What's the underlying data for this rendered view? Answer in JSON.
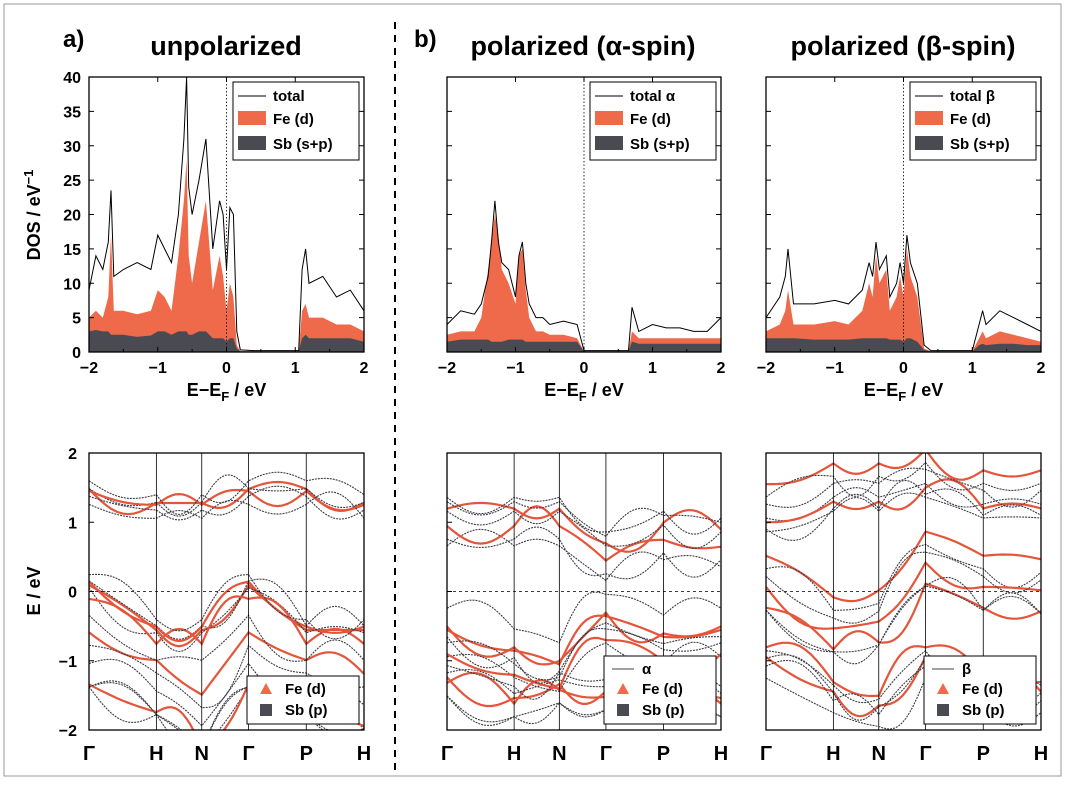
{
  "colors": {
    "fe": "#ee6a4a",
    "sb": "#4a4a52",
    "total": "#000000",
    "band_dark": "#3c3c46",
    "band_fe": "#e5553a"
  },
  "panel_labels": [
    "a)",
    "b)"
  ],
  "column_titles": [
    "unpolarized",
    "polarized (α-spin)",
    "polarized (β-spin)"
  ],
  "dos_axes": {
    "ylabel": "DOS / eV",
    "ylabel_sup": "−1",
    "xlabel_main": "E−E",
    "xlabel_sub": "F",
    "xlabel_unit": " /  eV",
    "xticks": [
      "−2",
      "−1",
      "0",
      "1",
      "2"
    ],
    "yticks": [
      "0",
      "5",
      "10",
      "15",
      "20",
      "25",
      "30",
      "35",
      "40"
    ]
  },
  "band_axes": {
    "ylabel": "E / eV",
    "yticks": [
      "−2",
      "−1",
      "0",
      "1",
      "2"
    ],
    "kpoints": [
      "Γ",
      "H",
      "N",
      "Γ",
      "P",
      "H"
    ]
  },
  "dos_legends": [
    [
      "total",
      "Fe (d)",
      "Sb (s+p)"
    ],
    [
      "total α",
      "Fe (d)",
      "Sb (s+p)"
    ],
    [
      "total β",
      "Fe (d)",
      "Sb (s+p)"
    ]
  ],
  "band_legends": [
    [
      "Fe (d)",
      "Sb (p)"
    ],
    [
      "α",
      "Fe (d)",
      "Sb (p)"
    ],
    [
      "β",
      "Fe (d)",
      "Sb (p)"
    ]
  ],
  "chart_data": [
    {
      "type": "area",
      "title": "unpolarized",
      "xlabel": "E−EF / eV",
      "ylabel": "DOS / eV−1",
      "xlim": [
        -2,
        2
      ],
      "ylim": [
        0,
        40
      ],
      "series": [
        {
          "name": "total",
          "x": [
            -2,
            -1.9,
            -1.8,
            -1.72,
            -1.68,
            -1.64,
            -1.5,
            -1.3,
            -1.1,
            -1.0,
            -0.9,
            -0.8,
            -0.7,
            -0.62,
            -0.58,
            -0.55,
            -0.5,
            -0.4,
            -0.3,
            -0.2,
            -0.1,
            -0.05,
            0,
            0.05,
            0.1,
            0.15,
            0.2,
            0.4,
            0.8,
            1.05,
            1.1,
            1.15,
            1.2,
            1.4,
            1.6,
            1.8,
            2.0
          ],
          "values": [
            9,
            14,
            12,
            16,
            23.5,
            11,
            12,
            13,
            12,
            17,
            15,
            13,
            20,
            31,
            40,
            24,
            20,
            25,
            31,
            15,
            22,
            20,
            12,
            21,
            20,
            3,
            0.3,
            0.2,
            0.2,
            0.2,
            12,
            15,
            10,
            11,
            8,
            9,
            6
          ]
        },
        {
          "name": "Fe (d)",
          "x": [
            -2,
            -1.9,
            -1.8,
            -1.72,
            -1.68,
            -1.64,
            -1.5,
            -1.3,
            -1.1,
            -1.0,
            -0.9,
            -0.8,
            -0.7,
            -0.62,
            -0.58,
            -0.55,
            -0.5,
            -0.4,
            -0.3,
            -0.2,
            -0.1,
            -0.05,
            0,
            0.05,
            0.1,
            0.15,
            0.2,
            0.4,
            0.8,
            1.05,
            1.1,
            1.15,
            1.2,
            1.4,
            1.6,
            1.8,
            2.0
          ],
          "values": [
            5,
            6,
            5,
            8,
            17,
            6,
            6,
            5.5,
            6,
            9,
            8,
            6,
            14,
            22,
            28,
            14,
            10,
            16,
            22,
            9,
            14,
            11,
            6,
            10,
            8,
            1,
            0.1,
            0.1,
            0.1,
            0.1,
            6,
            7,
            5,
            5,
            4,
            4,
            3
          ]
        },
        {
          "name": "Sb (s+p)",
          "x": [
            -2,
            -1.9,
            -1.8,
            -1.72,
            -1.68,
            -1.64,
            -1.5,
            -1.3,
            -1.1,
            -1.0,
            -0.9,
            -0.8,
            -0.7,
            -0.62,
            -0.58,
            -0.55,
            -0.5,
            -0.4,
            -0.3,
            -0.2,
            -0.1,
            -0.05,
            0,
            0.05,
            0.1,
            0.15,
            0.2,
            0.4,
            0.8,
            1.05,
            1.1,
            1.15,
            1.2,
            1.4,
            1.6,
            1.8,
            2.0
          ],
          "values": [
            3,
            3.2,
            3,
            3,
            2.5,
            2.5,
            2.5,
            2.2,
            2.4,
            3,
            3,
            2.5,
            3,
            3,
            3,
            2.5,
            2.5,
            3,
            3,
            2,
            2,
            2,
            1.5,
            2,
            2,
            0.5,
            0.1,
            0.1,
            0.1,
            0.1,
            2,
            2.5,
            2,
            2,
            2,
            2,
            1.5
          ]
        }
      ]
    },
    {
      "type": "area",
      "title": "polarized (α-spin)",
      "xlabel": "E−EF / eV",
      "xlim": [
        -2,
        2
      ],
      "ylim": [
        0,
        40
      ],
      "series": [
        {
          "name": "total α",
          "x": [
            -2,
            -1.8,
            -1.6,
            -1.5,
            -1.4,
            -1.35,
            -1.3,
            -1.25,
            -1.2,
            -1.1,
            -1.0,
            -0.95,
            -0.9,
            -0.85,
            -0.8,
            -0.7,
            -0.6,
            -0.5,
            -0.3,
            -0.1,
            0,
            0.3,
            0.6,
            0.65,
            0.7,
            0.8,
            1.0,
            1.2,
            1.4,
            1.6,
            1.8,
            2.0
          ],
          "values": [
            4,
            6,
            5.5,
            7,
            11,
            16,
            22,
            16,
            13,
            12,
            8,
            14,
            16,
            10,
            7,
            5,
            5,
            4,
            4.5,
            4,
            0.2,
            0.2,
            0.2,
            0.2,
            6.5,
            3,
            4,
            3.5,
            3.5,
            3,
            3,
            5
          ]
        },
        {
          "name": "Fe (d)",
          "x": [
            -2,
            -1.8,
            -1.6,
            -1.5,
            -1.4,
            -1.35,
            -1.3,
            -1.25,
            -1.2,
            -1.1,
            -1.0,
            -0.95,
            -0.9,
            -0.85,
            -0.8,
            -0.7,
            -0.6,
            -0.5,
            -0.3,
            -0.1,
            0,
            0.3,
            0.6,
            0.65,
            0.7,
            0.8,
            1.0,
            1.2,
            1.4,
            1.6,
            1.8,
            2.0
          ],
          "values": [
            2.5,
            3,
            3,
            5,
            12,
            16,
            20,
            17,
            12,
            10,
            7,
            14,
            15,
            9,
            5,
            3,
            3,
            2.5,
            2.5,
            2,
            0.1,
            0.1,
            0.1,
            0.1,
            3,
            2,
            2,
            2,
            2,
            2,
            2,
            2
          ]
        },
        {
          "name": "Sb (s+p)",
          "x": [
            -2,
            -1.8,
            -1.6,
            -1.5,
            -1.4,
            -1.35,
            -1.3,
            -1.25,
            -1.2,
            -1.1,
            -1.0,
            -0.95,
            -0.9,
            -0.85,
            -0.8,
            -0.7,
            -0.6,
            -0.5,
            -0.3,
            -0.1,
            0,
            0.3,
            0.6,
            0.65,
            0.7,
            0.8,
            1.0,
            1.2,
            1.4,
            1.6,
            1.8,
            2.0
          ],
          "values": [
            1.5,
            1.8,
            1.8,
            1.8,
            1.8,
            1.5,
            1.5,
            1.5,
            1.5,
            1.8,
            1.8,
            1.8,
            1.8,
            1.5,
            1.5,
            1.5,
            1.5,
            1.5,
            1.5,
            1.5,
            0.1,
            0.1,
            0.1,
            0.1,
            1.5,
            1.2,
            1.2,
            1.2,
            1.2,
            1.2,
            1.2,
            1.2
          ]
        }
      ]
    },
    {
      "type": "area",
      "title": "polarized (β-spin)",
      "xlabel": "E−EF / eV",
      "xlim": [
        -2,
        2
      ],
      "ylim": [
        0,
        40
      ],
      "series": [
        {
          "name": "total β",
          "x": [
            -2,
            -1.8,
            -1.72,
            -1.68,
            -1.6,
            -1.3,
            -1.0,
            -0.8,
            -0.6,
            -0.5,
            -0.45,
            -0.4,
            -0.35,
            -0.3,
            -0.25,
            -0.2,
            -0.1,
            -0.05,
            0,
            0.05,
            0.1,
            0.2,
            0.3,
            0.4,
            0.6,
            1.0,
            1.1,
            1.15,
            1.2,
            1.4,
            1.6,
            1.8,
            2.0
          ],
          "values": [
            5,
            8,
            11,
            15,
            7,
            7,
            7.5,
            7,
            9,
            13,
            11,
            16,
            12,
            13,
            14,
            8,
            10,
            13,
            10,
            17,
            13,
            10,
            1,
            0.2,
            0.2,
            0.2,
            4,
            6,
            4,
            6,
            5,
            4,
            3
          ]
        },
        {
          "name": "Fe (d)",
          "x": [
            -2,
            -1.8,
            -1.72,
            -1.68,
            -1.6,
            -1.3,
            -1.0,
            -0.8,
            -0.6,
            -0.5,
            -0.45,
            -0.4,
            -0.35,
            -0.3,
            -0.25,
            -0.2,
            -0.1,
            -0.05,
            0,
            0.05,
            0.1,
            0.2,
            0.3,
            0.4,
            0.6,
            1.0,
            1.1,
            1.15,
            1.2,
            1.4,
            1.6,
            1.8,
            2.0
          ],
          "values": [
            3,
            4,
            6,
            9,
            4,
            4,
            4.5,
            4,
            6,
            10,
            8,
            14,
            10,
            11,
            12,
            6,
            8,
            11,
            8,
            15,
            11,
            8,
            0.5,
            0.1,
            0.1,
            0.1,
            2,
            3,
            2,
            3,
            2.5,
            2,
            1.5
          ]
        },
        {
          "name": "Sb (s+p)",
          "x": [
            -2,
            -1.8,
            -1.72,
            -1.68,
            -1.6,
            -1.3,
            -1.0,
            -0.8,
            -0.6,
            -0.5,
            -0.45,
            -0.4,
            -0.35,
            -0.3,
            -0.25,
            -0.2,
            -0.1,
            -0.05,
            0,
            0.05,
            0.1,
            0.2,
            0.3,
            0.4,
            0.6,
            1.0,
            1.1,
            1.15,
            1.2,
            1.4,
            1.6,
            1.8,
            2.0
          ],
          "values": [
            2,
            2,
            2,
            2,
            2,
            1.8,
            1.8,
            1.8,
            2,
            2,
            2,
            2,
            2,
            2,
            2,
            1.8,
            1.8,
            1.8,
            1.5,
            2,
            2,
            1.5,
            0.3,
            0.1,
            0.1,
            0.1,
            1,
            1.2,
            1,
            1.2,
            1.2,
            1,
            1
          ]
        }
      ]
    },
    {
      "type": "line",
      "title": "unpolarized",
      "ylabel": "E / eV",
      "ylim": [
        -2,
        2
      ],
      "categories": [
        "Γ",
        "H",
        "N",
        "Γ",
        "P",
        "H"
      ],
      "series": [
        {
          "name": "Fe (d)",
          "values": [
            0.1,
            -0.55,
            -0.55,
            0.1,
            -0.55,
            -0.55
          ]
        },
        {
          "name": "Sb (p)",
          "values": [
            -1.0,
            -1.4,
            -1.9,
            -1.0,
            -1.4,
            -1.6
          ]
        },
        {
          "name": "Fe (d)",
          "values": [
            1.4,
            1.2,
            1.2,
            1.4,
            1.4,
            1.2
          ]
        }
      ]
    },
    {
      "type": "line",
      "title": "polarized (α-spin)",
      "ylim": [
        -2,
        2
      ],
      "categories": [
        "Γ",
        "H",
        "N",
        "Γ",
        "P",
        "H"
      ],
      "series": [
        {
          "name": "α",
          "values": [
            -0.5,
            -0.8,
            -1.0,
            -0.3,
            -0.6,
            -0.5
          ]
        },
        {
          "name": "Fe (d)",
          "values": [
            1.0,
            1.0,
            1.0,
            0.5,
            0.8,
            0.7
          ]
        },
        {
          "name": "Sb (p)",
          "values": [
            -1.3,
            -1.6,
            -1.4,
            -1.5,
            -1.3,
            -1.6
          ]
        }
      ]
    },
    {
      "type": "line",
      "title": "polarized (β-spin)",
      "ylim": [
        -2,
        2
      ],
      "categories": [
        "Γ",
        "H",
        "N",
        "Γ",
        "P",
        "H"
      ],
      "series": [
        {
          "name": "β",
          "values": [
            0.1,
            -0.5,
            -0.4,
            0.45,
            0.1,
            0.05
          ]
        },
        {
          "name": "Fe (d)",
          "values": [
            1.2,
            1.5,
            1.5,
            1.7,
            1.4,
            1.4
          ]
        },
        {
          "name": "Sb (p)",
          "values": [
            -1.0,
            -1.5,
            -1.7,
            -1.0,
            -1.4,
            -1.5
          ]
        }
      ]
    }
  ]
}
